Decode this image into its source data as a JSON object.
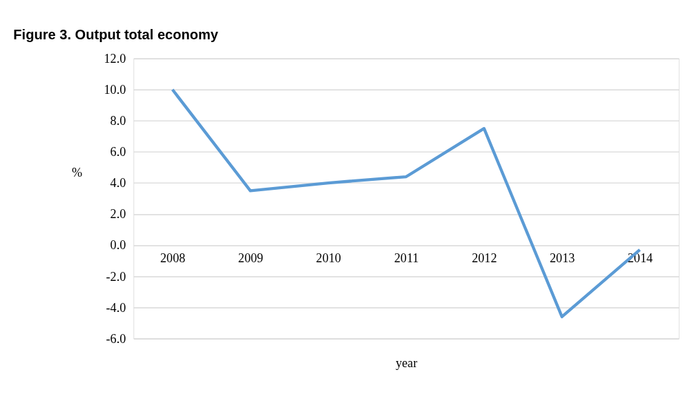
{
  "chart_data": {
    "type": "line",
    "title": "Figure 3. Output total economy",
    "xlabel": "year",
    "ylabel": "%",
    "categories": [
      "2008",
      "2009",
      "2010",
      "2011",
      "2012",
      "2013",
      "2014"
    ],
    "series": [
      {
        "color": "#5b9bd5",
        "values": [
          10.0,
          3.5,
          4.0,
          4.4,
          7.5,
          -4.6,
          -0.3
        ]
      }
    ],
    "ylim": [
      -6,
      12
    ],
    "yticks": [
      {
        "value": -6,
        "label": "-6.0"
      },
      {
        "value": -4,
        "label": "-4.0"
      },
      {
        "value": -2,
        "label": "-2.0"
      },
      {
        "value": 0,
        "label": "0.0"
      },
      {
        "value": 2,
        "label": "2.0"
      },
      {
        "value": 4,
        "label": "4.0"
      },
      {
        "value": 6,
        "label": "6.0"
      },
      {
        "value": 8,
        "label": "8.0"
      },
      {
        "value": 10,
        "label": "10.0"
      },
      {
        "value": 12,
        "label": "12.0"
      }
    ],
    "grid": "y",
    "legend": false,
    "marker": "none",
    "line_style": "solid"
  }
}
